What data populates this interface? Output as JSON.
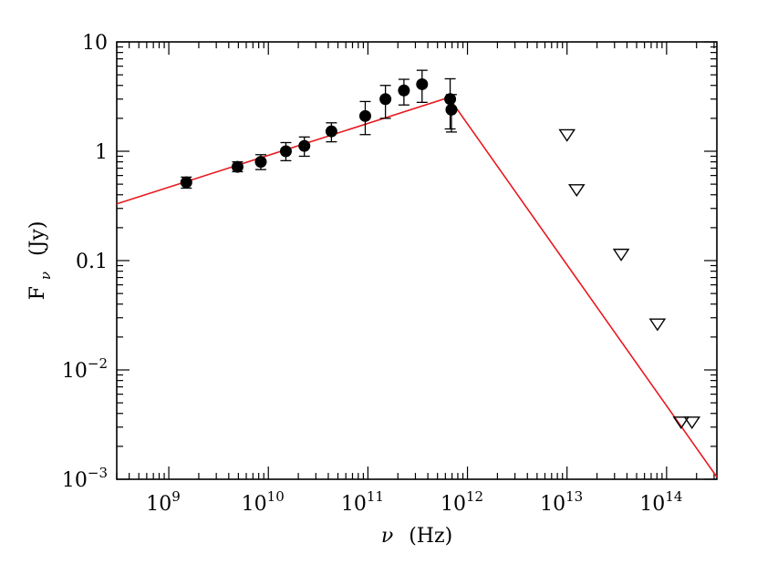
{
  "chart_data": {
    "type": "scatter",
    "title": "",
    "xlabel": "ν (Hz)",
    "ylabel": "F_ν (Jy)",
    "xlabel_parts": {
      "symbol": "ν",
      "unit": "(Hz)"
    },
    "ylabel_parts": {
      "symbol": "F",
      "subscript": "ν",
      "unit": "(Jy)"
    },
    "xscale": "log",
    "yscale": "log",
    "xlim": [
      300000000.0,
      320000000000000.0
    ],
    "ylim": [
      0.001,
      10
    ],
    "x_ticks": [
      {
        "value": 1000000000.0,
        "base": "10",
        "exp": "9"
      },
      {
        "value": 10000000000.0,
        "base": "10",
        "exp": "10"
      },
      {
        "value": 100000000000.0,
        "base": "10",
        "exp": "11"
      },
      {
        "value": 1000000000000.0,
        "base": "10",
        "exp": "12"
      },
      {
        "value": 10000000000000.0,
        "base": "10",
        "exp": "13"
      },
      {
        "value": 100000000000000.0,
        "base": "10",
        "exp": "14"
      }
    ],
    "y_ticks": [
      {
        "value": 10,
        "text": "10"
      },
      {
        "value": 1,
        "text": "1"
      },
      {
        "value": 0.1,
        "text": "0.1"
      },
      {
        "value": 0.01,
        "base": "10",
        "exp": "−2"
      },
      {
        "value": 0.001,
        "base": "10",
        "exp": "−3"
      }
    ],
    "grid": false,
    "legend": null,
    "colors": {
      "model_line": "#e8191e",
      "points": "#000000",
      "frame": "#000000"
    },
    "series": [
      {
        "kind": "detections",
        "marker": "filled-circle",
        "points": [
          {
            "x": 1500000000.0,
            "y": 0.52,
            "err_lo": 0.46,
            "err_hi": 0.58
          },
          {
            "x": 4900000000.0,
            "y": 0.72,
            "err_lo": 0.65,
            "err_hi": 0.8
          },
          {
            "x": 8400000000.0,
            "y": 0.8,
            "err_lo": 0.68,
            "err_hi": 0.93
          },
          {
            "x": 15000000000.0,
            "y": 1.0,
            "err_lo": 0.82,
            "err_hi": 1.2
          },
          {
            "x": 23000000000.0,
            "y": 1.12,
            "err_lo": 0.9,
            "err_hi": 1.35
          },
          {
            "x": 43000000000.0,
            "y": 1.52,
            "err_lo": 1.22,
            "err_hi": 1.82
          },
          {
            "x": 94000000000.0,
            "y": 2.1,
            "err_lo": 1.42,
            "err_hi": 2.85
          },
          {
            "x": 150000000000.0,
            "y": 3.0,
            "err_lo": 2.0,
            "err_hi": 4.0
          },
          {
            "x": 230000000000.0,
            "y": 3.6,
            "err_lo": 2.65,
            "err_hi": 4.55
          },
          {
            "x": 350000000000.0,
            "y": 4.1,
            "err_lo": 2.8,
            "err_hi": 5.5
          },
          {
            "x": 670000000000.0,
            "y": 3.0,
            "err_lo": 1.6,
            "err_hi": 4.6
          },
          {
            "x": 690000000000.0,
            "y": 2.4,
            "err_lo": 1.5,
            "err_hi": 3.3
          }
        ]
      },
      {
        "kind": "upper-limits",
        "marker": "open-down-triangle",
        "points": [
          {
            "x": 10000000000000.0,
            "y": 1.4
          },
          {
            "x": 12500000000000.0,
            "y": 0.44
          },
          {
            "x": 35000000000000.0,
            "y": 0.113
          },
          {
            "x": 81000000000000.0,
            "y": 0.026
          },
          {
            "x": 140000000000000.0,
            "y": 0.0033
          },
          {
            "x": 180000000000000.0,
            "y": 0.0033
          }
        ]
      },
      {
        "kind": "model",
        "marker": "line",
        "points": [
          {
            "x": 300000000.0,
            "y": 0.33
          },
          {
            "x": 650000000000.0,
            "y": 3.1
          },
          {
            "x": 320000000000000.0,
            "y": 0.00105
          }
        ]
      }
    ]
  }
}
